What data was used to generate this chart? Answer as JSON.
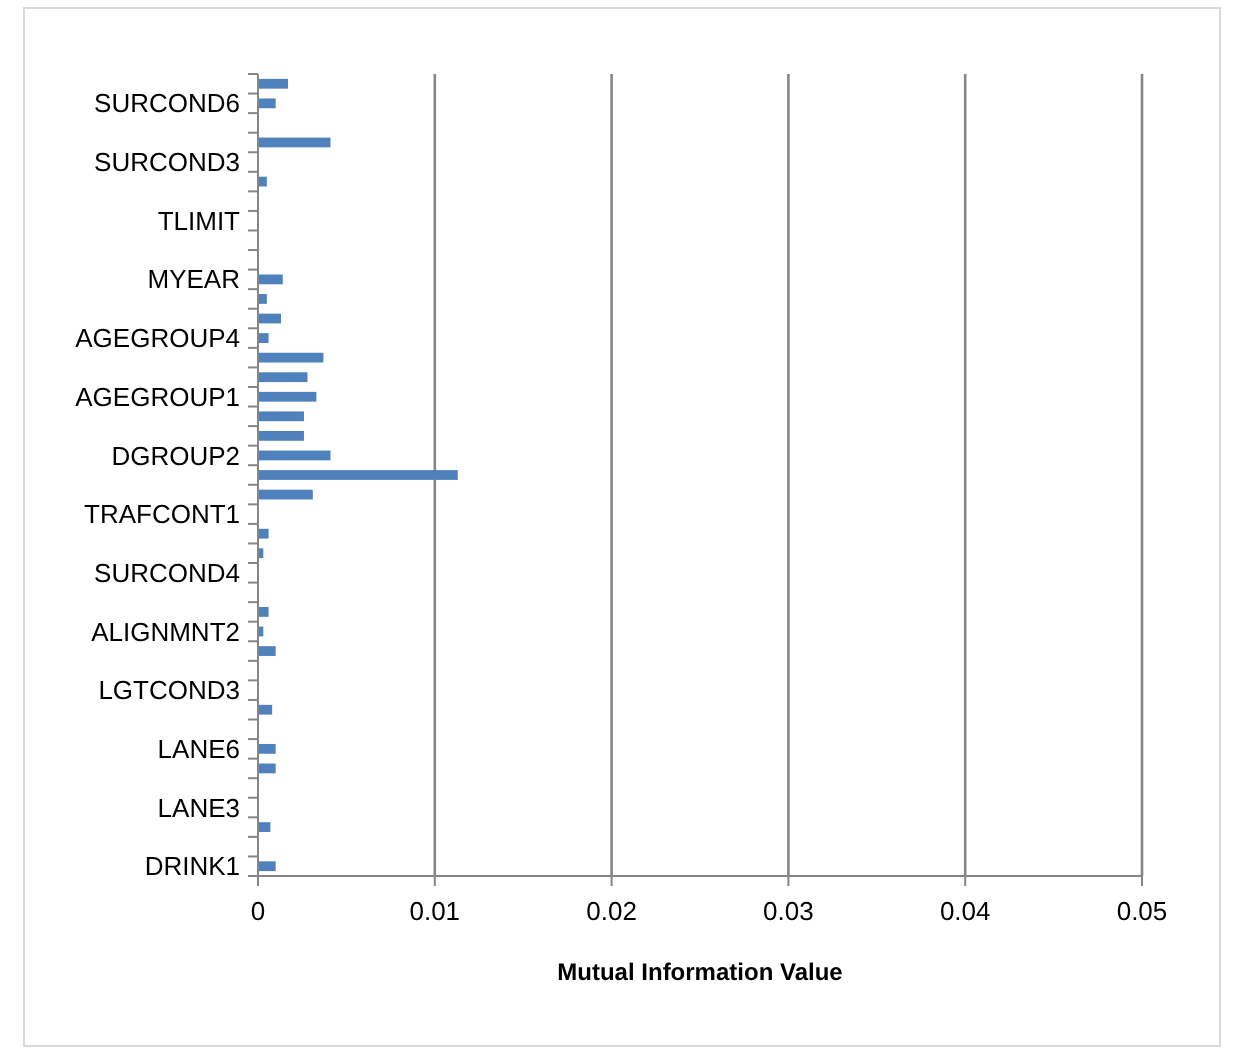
{
  "chart_data": {
    "type": "bar",
    "orientation": "horizontal",
    "xlabel": "Mutual Information Value",
    "categories": [
      null,
      "SURCOND6",
      null,
      null,
      "SURCOND3",
      null,
      null,
      "TLIMIT",
      null,
      null,
      "MYEAR",
      null,
      null,
      "AGEGROUP4",
      null,
      null,
      "AGEGROUP1",
      null,
      null,
      "DGROUP2",
      null,
      null,
      "TRAFCONT1",
      null,
      null,
      "SURCOND4",
      null,
      null,
      "ALIGNMNT2",
      null,
      null,
      "LGTCOND3",
      null,
      null,
      "LANE6",
      null,
      null,
      "LANE3",
      null,
      null,
      "DRINK1"
    ],
    "values": [
      0.0017,
      0.001,
      0,
      0.0041,
      0,
      0.0005,
      0,
      0,
      0,
      0,
      0.0014,
      0.0005,
      0.0013,
      0.0006,
      0.0037,
      0.0028,
      0.0033,
      0.0026,
      0.0026,
      0.0041,
      0.0113,
      0.0031,
      0,
      0.0006,
      0.0003,
      0,
      0,
      0.0006,
      0.0003,
      0.001,
      0,
      0,
      0.0008,
      0,
      0.001,
      0.001,
      0,
      0,
      0.0007,
      0,
      0.001
    ],
    "color": "#4f81bd",
    "xlim": [
      0,
      0.05
    ],
    "xticks": [
      0,
      0.01,
      0.02,
      0.03,
      0.04,
      0.05
    ],
    "grid": "x"
  }
}
